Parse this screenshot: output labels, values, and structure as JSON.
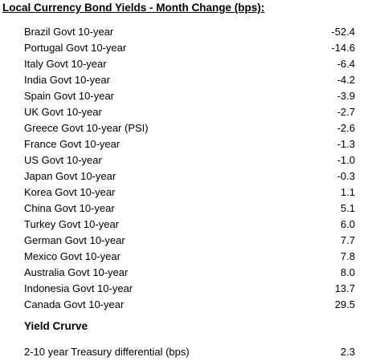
{
  "title": "Local Currency Bond Yields - Month Change (bps):",
  "rows": [
    {
      "label": "Brazil Govt 10-year",
      "value": "-52.4"
    },
    {
      "label": "Portugal Govt 10-year",
      "value": "-14.6"
    },
    {
      "label": "Italy Govt 10-year",
      "value": "-6.4"
    },
    {
      "label": "India Govt 10-year",
      "value": "-4.2"
    },
    {
      "label": "Spain Govt 10-year",
      "value": "-3.9"
    },
    {
      "label": "UK Govt 10-year",
      "value": "-2.7"
    },
    {
      "label": "Greece Govt 10-year (PSI)",
      "value": "-2.6"
    },
    {
      "label": "France Govt 10-year",
      "value": "-1.3"
    },
    {
      "label": "US Govt 10-year",
      "value": "-1.0"
    },
    {
      "label": "Japan Govt 10-year",
      "value": "-0.3"
    },
    {
      "label": "Korea Govt 10-year",
      "value": "1.1"
    },
    {
      "label": "China Govt 10-year",
      "value": "5.1"
    },
    {
      "label": "Turkey Govt 10-year",
      "value": "6.0"
    },
    {
      "label": "German Govt 10-year",
      "value": "7.7"
    },
    {
      "label": "Mexico Govt 10-year",
      "value": "7.8"
    },
    {
      "label": "Australia Govt 10-year",
      "value": "8.0"
    },
    {
      "label": "Indonesia Govt 10-year",
      "value": "13.7"
    },
    {
      "label": "Canada Govt 10-year",
      "value": "29.5"
    }
  ],
  "yield_curve": {
    "heading": "Yield Crurve",
    "label": "2-10 year Treasury differential (bps)",
    "value": "2.3"
  }
}
